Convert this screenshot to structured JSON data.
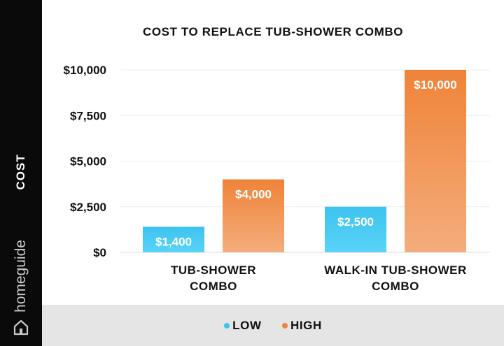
{
  "sidebar": {
    "axis_label": "COST",
    "brand": "homeguide",
    "brand_icon": "house-icon"
  },
  "colors": {
    "low": "#3cc3f0",
    "high": "#ef8339",
    "sidebar": "#0a0a0a",
    "legend_bg": "#e5e5e5"
  },
  "legend": {
    "low": "LOW",
    "high": "HIGH"
  },
  "chart_data": {
    "type": "bar",
    "title": "COST TO REPLACE TUB-SHOWER COMBO",
    "ylabel": "COST",
    "xlabel": "",
    "categories": [
      [
        "TUB-SHOWER",
        "COMBO"
      ],
      [
        "WALK-IN TUB-SHOWER",
        "COMBO"
      ]
    ],
    "series": [
      {
        "name": "LOW",
        "values": [
          1400,
          2500
        ],
        "labels": [
          "$1,400",
          "$2,500"
        ]
      },
      {
        "name": "HIGH",
        "values": [
          4000,
          10000
        ],
        "labels": [
          "$4,000",
          "$10,000"
        ]
      }
    ],
    "yticks": [
      0,
      2500,
      5000,
      7500,
      10000
    ],
    "ytick_labels": [
      "$0",
      "$2,500",
      "$5,000",
      "$7,500",
      "$10,000"
    ],
    "ylim": [
      0,
      10000
    ],
    "grid": true,
    "legend_position": "bottom"
  }
}
